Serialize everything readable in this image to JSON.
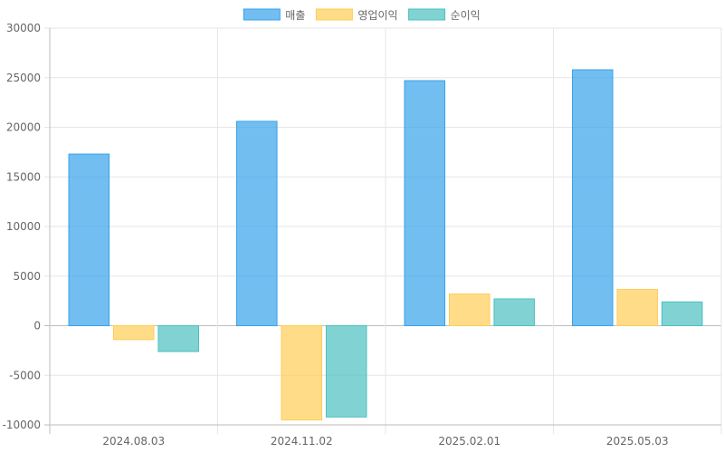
{
  "chart_data": {
    "type": "bar",
    "categories": [
      "2024.08.03",
      "2024.11.02",
      "2025.02.01",
      "2025.05.03"
    ],
    "series": [
      {
        "name": "매출",
        "values": [
          17300,
          20600,
          24700,
          25800
        ],
        "fill": "#36A2EB",
        "stroke": "#36A2EB"
      },
      {
        "name": "영업이익",
        "values": [
          -1400,
          -9500,
          3200,
          3650
        ],
        "fill": "#FFCD56",
        "stroke": "#FFCD56"
      },
      {
        "name": "순이익",
        "values": [
          -2600,
          -9200,
          2700,
          2400
        ],
        "fill": "#4BC0C0",
        "stroke": "#4BC0C0"
      }
    ],
    "yticks": [
      "30000",
      "25000",
      "20000",
      "15000",
      "10000",
      "5000",
      "0",
      "-5000",
      "-10000"
    ],
    "ylim": [
      -10000,
      30000
    ],
    "title": "",
    "xlabel": "",
    "ylabel": "",
    "legend": "top-center",
    "grid": true
  }
}
